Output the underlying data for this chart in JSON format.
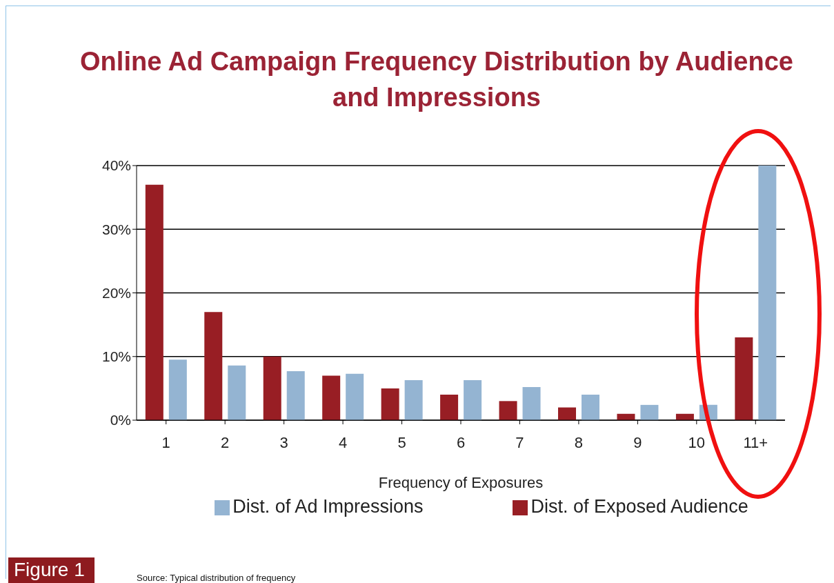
{
  "chart_data": {
    "type": "bar",
    "title": "Online Ad Campaign Frequency Distribution by Audience and Impressions",
    "xlabel": "Frequency of Exposures",
    "categories": [
      "1",
      "2",
      "3",
      "4",
      "5",
      "6",
      "7",
      "8",
      "9",
      "10",
      "11+"
    ],
    "series": [
      {
        "name": "Dist. of Exposed Audience",
        "color": "#981e24",
        "values": [
          37,
          17,
          10,
          7,
          5,
          4,
          3,
          2,
          1,
          1,
          13
        ]
      },
      {
        "name": "Dist. of Ad Impressions",
        "color": "#94b4d2",
        "values": [
          9.5,
          8.6,
          7.7,
          7.3,
          6.3,
          6.3,
          5.2,
          4,
          2.4,
          2.4,
          40
        ]
      }
    ],
    "ylim": [
      0,
      40
    ],
    "yticks": [
      {
        "value": 0,
        "label": "0%"
      },
      {
        "value": 10,
        "label": "10%"
      },
      {
        "value": 20,
        "label": "20%"
      },
      {
        "value": 30,
        "label": "30%"
      },
      {
        "value": 40,
        "label": "40%"
      }
    ],
    "grid": "y",
    "legend": "bottom",
    "annotations": [
      "Figure 1",
      "Source: Typical distribution of frequency"
    ]
  }
}
